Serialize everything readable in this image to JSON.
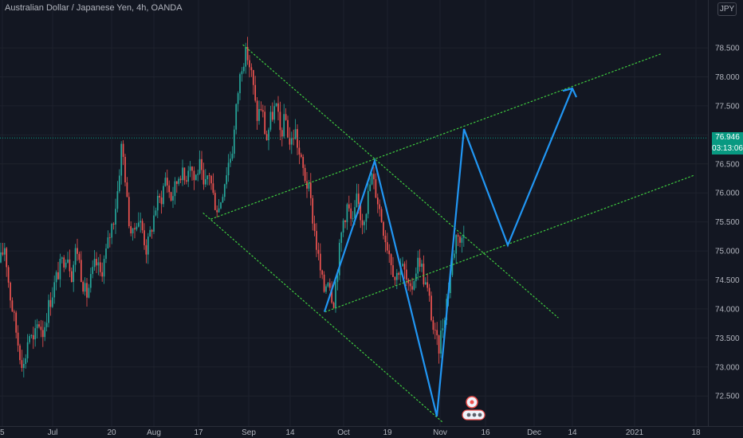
{
  "header": {
    "title": "Australian Dollar / Japanese Yen, 4h, OANDA",
    "currency_badge": "JPY"
  },
  "price_readout": {
    "last_price": "76.946",
    "countdown": "03:13:06"
  },
  "colors": {
    "background": "#131722",
    "grid": "#1e222d",
    "up_candle": "#26a69a",
    "down_candle": "#ef5350",
    "trendlines": "#3fce3f",
    "projection": "#2196f3",
    "axis_text": "#b2b5be",
    "price_label": "#089981"
  },
  "chart_data": {
    "type": "candlestick",
    "title": "Australian Dollar / Japanese Yen, 4h, OANDA",
    "y_unit": "JPY",
    "ylim": [
      72.05,
      79.05
    ],
    "x_ticks": [
      "5",
      "Jul",
      "20",
      "Aug",
      "17",
      "Sep",
      "14",
      "Oct",
      "19",
      "Nov",
      "16",
      "Dec",
      "14",
      "2021",
      "18"
    ],
    "y_ticks": [
      "72.500",
      "73.000",
      "73.500",
      "74.000",
      "74.500",
      "75.000",
      "75.500",
      "76.000",
      "76.500",
      "77.000",
      "77.500",
      "78.000",
      "78.500"
    ],
    "grid": true,
    "last_price": 76.946,
    "price_path": [
      [
        0,
        74.8
      ],
      [
        6,
        75.1
      ],
      [
        12,
        74.3
      ],
      [
        18,
        73.8
      ],
      [
        24,
        73.3
      ],
      [
        30,
        73.0
      ],
      [
        36,
        73.6
      ],
      [
        42,
        73.4
      ],
      [
        48,
        73.8
      ],
      [
        54,
        73.6
      ],
      [
        60,
        74.0
      ],
      [
        66,
        74.3
      ],
      [
        72,
        74.6
      ],
      [
        78,
        74.8
      ],
      [
        84,
        75.0
      ],
      [
        90,
        74.6
      ],
      [
        96,
        75.1
      ],
      [
        102,
        74.6
      ],
      [
        108,
        74.2
      ],
      [
        114,
        74.5
      ],
      [
        120,
        74.8
      ],
      [
        126,
        74.6
      ],
      [
        132,
        74.9
      ],
      [
        138,
        75.3
      ],
      [
        143,
        75.6
      ],
      [
        148,
        76.1
      ],
      [
        152,
        76.8
      ],
      [
        156,
        76.5
      ],
      [
        160,
        75.7
      ],
      [
        166,
        75.2
      ],
      [
        172,
        75.6
      ],
      [
        178,
        75.4
      ],
      [
        184,
        75.0
      ],
      [
        190,
        75.4
      ],
      [
        196,
        75.8
      ],
      [
        202,
        75.9
      ],
      [
        208,
        76.3
      ],
      [
        214,
        75.9
      ],
      [
        220,
        76.1
      ],
      [
        226,
        76.4
      ],
      [
        232,
        76.2
      ],
      [
        238,
        76.6
      ],
      [
        244,
        76.2
      ],
      [
        250,
        76.5
      ],
      [
        256,
        76.0
      ],
      [
        262,
        76.4
      ],
      [
        268,
        75.9
      ],
      [
        274,
        75.7
      ],
      [
        280,
        76.1
      ],
      [
        286,
        76.5
      ],
      [
        292,
        76.8
      ],
      [
        298,
        77.7
      ],
      [
        304,
        78.3
      ],
      [
        310,
        78.4
      ],
      [
        316,
        78.0
      ],
      [
        322,
        77.3
      ],
      [
        328,
        77.5
      ],
      [
        334,
        76.9
      ],
      [
        340,
        77.3
      ],
      [
        346,
        77.5
      ],
      [
        352,
        77.0
      ],
      [
        358,
        77.3
      ],
      [
        364,
        76.8
      ],
      [
        370,
        77.1
      ],
      [
        376,
        76.6
      ],
      [
        382,
        76.3
      ],
      [
        388,
        76.0
      ],
      [
        394,
        75.4
      ],
      [
        400,
        74.8
      ],
      [
        406,
        74.3
      ],
      [
        412,
        74.6
      ],
      [
        418,
        74.1
      ],
      [
        424,
        74.8
      ],
      [
        430,
        75.5
      ],
      [
        436,
        75.8
      ],
      [
        442,
        75.4
      ],
      [
        448,
        75.9
      ],
      [
        454,
        75.5
      ],
      [
        460,
        75.8
      ],
      [
        466,
        76.3
      ],
      [
        472,
        76.0
      ],
      [
        478,
        75.6
      ],
      [
        484,
        75.2
      ],
      [
        490,
        74.9
      ],
      [
        496,
        74.5
      ],
      [
        502,
        74.8
      ],
      [
        508,
        74.6
      ],
      [
        514,
        74.2
      ],
      [
        520,
        74.6
      ],
      [
        526,
        74.9
      ],
      [
        532,
        74.5
      ],
      [
        538,
        74.2
      ],
      [
        544,
        73.6
      ],
      [
        550,
        73.3
      ],
      [
        556,
        73.8
      ],
      [
        562,
        74.3
      ],
      [
        568,
        74.9
      ],
      [
        574,
        75.4
      ],
      [
        578,
        75.1
      ],
      [
        582,
        75.3
      ]
    ],
    "trendlines": [
      {
        "points": [
          [
            305,
            78.55
          ],
          [
            700,
            73.85
          ]
        ]
      },
      {
        "points": [
          [
            255,
            75.65
          ],
          [
            555,
            72.05
          ]
        ]
      },
      {
        "points": [
          [
            265,
            75.55
          ],
          [
            830,
            78.4
          ]
        ]
      },
      {
        "points": [
          [
            408,
            73.95
          ],
          [
            870,
            76.3
          ]
        ]
      }
    ],
    "projection_path": [
      [
        407,
        73.95
      ],
      [
        470,
        76.55
      ],
      [
        548,
        72.15
      ],
      [
        582,
        77.1
      ],
      [
        637,
        75.1
      ],
      [
        718,
        77.8
      ]
    ],
    "projection_arrow_tip": [
      718,
      77.8
    ]
  }
}
